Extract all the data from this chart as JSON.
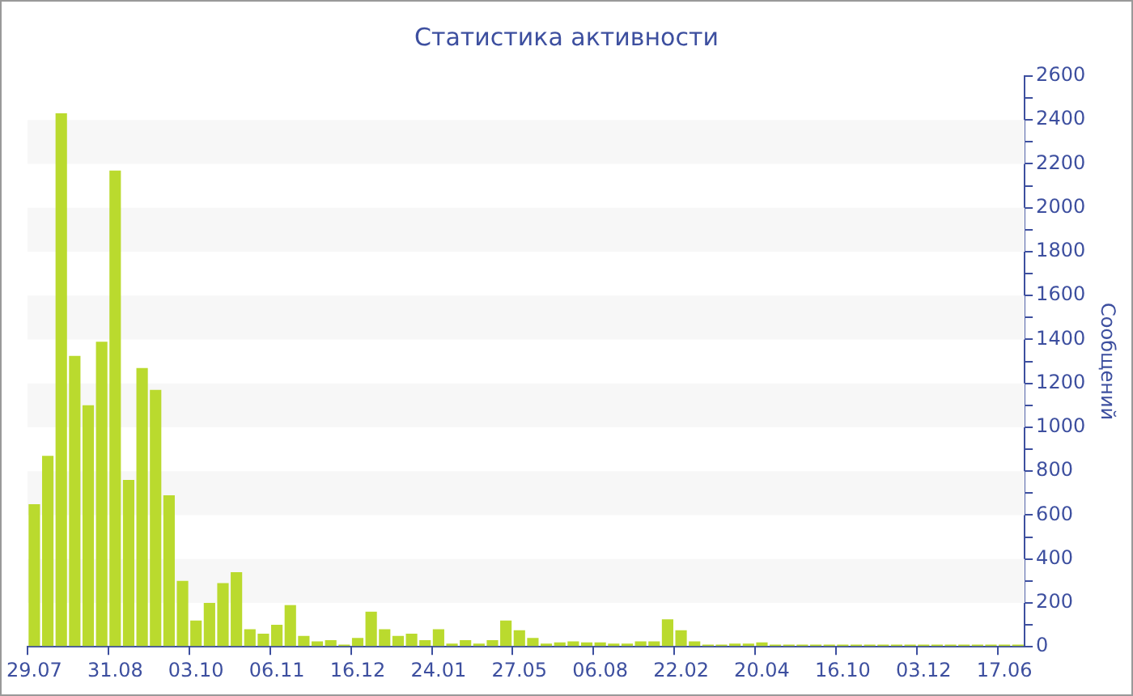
{
  "chart_data": {
    "type": "bar",
    "title": "Статистика активности",
    "ylabel": "Сообщений",
    "categories": [
      "29.07",
      null,
      null,
      null,
      null,
      null,
      "31.08",
      null,
      null,
      null,
      null,
      null,
      "03.10",
      null,
      null,
      null,
      null,
      null,
      "06.11",
      null,
      null,
      null,
      null,
      null,
      "16.12",
      null,
      null,
      null,
      null,
      null,
      "24.01",
      null,
      null,
      null,
      null,
      null,
      "27.05",
      null,
      null,
      null,
      null,
      null,
      "06.08",
      null,
      null,
      null,
      null,
      null,
      "22.02",
      null,
      null,
      null,
      null,
      null,
      "20.04",
      null,
      null,
      null,
      null,
      null,
      "16.10",
      null,
      null,
      null,
      null,
      null,
      "03.12",
      null,
      null,
      null,
      null,
      null,
      "17.06",
      null
    ],
    "values": [
      650,
      870,
      2430,
      1325,
      1100,
      1390,
      2170,
      760,
      1270,
      1170,
      690,
      300,
      120,
      200,
      290,
      340,
      80,
      60,
      100,
      190,
      50,
      25,
      30,
      10,
      40,
      160,
      80,
      50,
      60,
      30,
      80,
      15,
      30,
      15,
      30,
      120,
      75,
      40,
      15,
      20,
      25,
      20,
      20,
      15,
      15,
      25,
      25,
      125,
      75,
      25,
      10,
      10,
      15,
      15,
      20,
      10,
      10,
      10,
      10,
      10,
      10,
      10,
      10,
      10,
      10,
      10,
      10,
      10,
      10,
      10,
      10,
      10,
      10,
      10
    ],
    "color": "#bada2e",
    "ylim": [
      0,
      2600
    ],
    "yticks": [
      0,
      {
        "value": 100,
        "label": null
      },
      200,
      {
        "value": 300,
        "label": null
      },
      400,
      {
        "value": 500,
        "label": null
      },
      600,
      {
        "value": 700,
        "label": null
      },
      800,
      {
        "value": 900,
        "label": null
      },
      1000,
      {
        "value": 1100,
        "label": null
      },
      1200,
      {
        "value": 1300,
        "label": null
      },
      1400,
      {
        "value": 1500,
        "label": null
      },
      1600,
      {
        "value": 1700,
        "label": null
      },
      1800,
      {
        "value": 1900,
        "label": null
      },
      2000,
      {
        "value": 2100,
        "label": null
      },
      2200,
      {
        "value": 2300,
        "label": null
      },
      2400,
      {
        "value": 2500,
        "label": null
      },
      2600
    ],
    "bands": [
      {
        "axis": "y",
        "from": 200,
        "to": 400,
        "color": "#f7f7f7"
      },
      {
        "axis": "y",
        "from": 600,
        "to": 800,
        "color": "#f7f7f7"
      },
      {
        "axis": "y",
        "from": 1000,
        "to": 1200,
        "color": "#f7f7f7"
      },
      {
        "axis": "y",
        "from": 1400,
        "to": 1600,
        "color": "#f7f7f7"
      },
      {
        "axis": "y",
        "from": 1800,
        "to": 2000,
        "color": "#f7f7f7"
      },
      {
        "axis": "y",
        "from": 2200,
        "to": 2400,
        "color": "#f7f7f7"
      }
    ],
    "legend": false
  }
}
